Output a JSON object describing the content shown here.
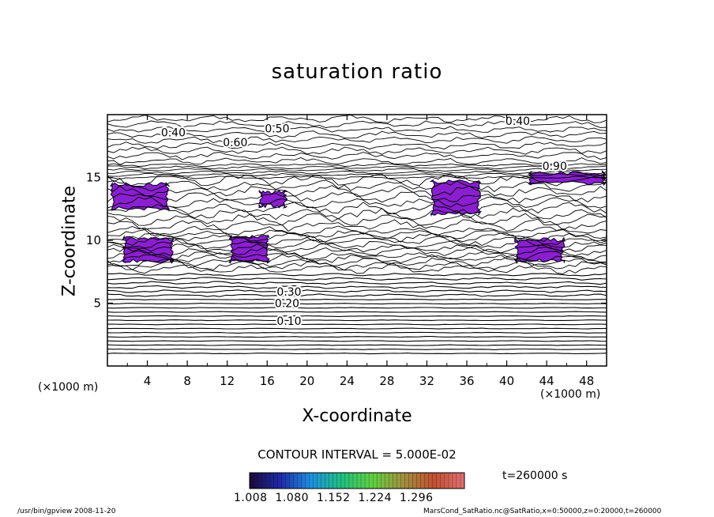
{
  "chart_data": {
    "type": "heatmap",
    "title": "saturation ratio",
    "xlabel": "X-coordinate",
    "ylabel": "Z-coordinate",
    "x_unit": "(×1000 m)",
    "y_unit": "(×1000 m)",
    "xlim": [
      0,
      50
    ],
    "ylim": [
      0,
      20
    ],
    "x_ticks": [
      4,
      8,
      12,
      16,
      20,
      24,
      28,
      32,
      36,
      40,
      44,
      48
    ],
    "y_ticks": [
      5,
      10,
      15
    ],
    "contour_interval": "CONTOUR INTERVAL = 5.000E-02",
    "time": "t=260000 s",
    "colorbar": {
      "ticks": [
        "1.008",
        "1.080",
        "1.152",
        "1.224",
        "1.296"
      ],
      "range": [
        1.008,
        1.296
      ],
      "colors": [
        "#1a0a3a",
        "#1e2aa8",
        "#1e90e0",
        "#20c080",
        "#60d040",
        "#a09040",
        "#c05030",
        "#e07070"
      ]
    },
    "contour_labels": [
      {
        "text": "0.10",
        "x": 18.2,
        "y": 3.6
      },
      {
        "text": "0.20",
        "x": 18.0,
        "y": 5.0
      },
      {
        "text": "0.30",
        "x": 18.2,
        "y": 5.9
      },
      {
        "text": "0.40",
        "x": 6.6,
        "y": 18.6
      },
      {
        "text": "0.40",
        "x": 41.1,
        "y": 19.5
      },
      {
        "text": "0.50",
        "x": 17.0,
        "y": 18.9
      },
      {
        "text": "0.60",
        "x": 12.8,
        "y": 17.8
      },
      {
        "text": "0.90",
        "x": 44.8,
        "y": 15.9
      }
    ],
    "supersaturated_regions": [
      {
        "x_range": [
          0.3,
          6.2
        ],
        "z_range": [
          12.4,
          14.6
        ]
      },
      {
        "x_range": [
          15.2,
          18.0
        ],
        "z_range": [
          12.6,
          14.0
        ]
      },
      {
        "x_range": [
          32.4,
          37.4
        ],
        "z_range": [
          12.0,
          14.8
        ]
      },
      {
        "x_range": [
          42.2,
          49.9
        ],
        "z_range": [
          14.4,
          15.5
        ]
      },
      {
        "x_range": [
          1.5,
          6.6
        ],
        "z_range": [
          8.2,
          10.3
        ]
      },
      {
        "x_range": [
          12.2,
          16.2
        ],
        "z_range": [
          8.2,
          10.4
        ]
      },
      {
        "x_range": [
          40.8,
          45.8
        ],
        "z_range": [
          8.2,
          10.2
        ]
      }
    ],
    "grid": false,
    "legend": "bottom"
  },
  "footer": {
    "left": "/usr/bin/gpview   2008-11-20",
    "right": "MarsCond_SatRatio.nc@SatRatio,x=0:50000,z=0:20000,t=260000"
  }
}
